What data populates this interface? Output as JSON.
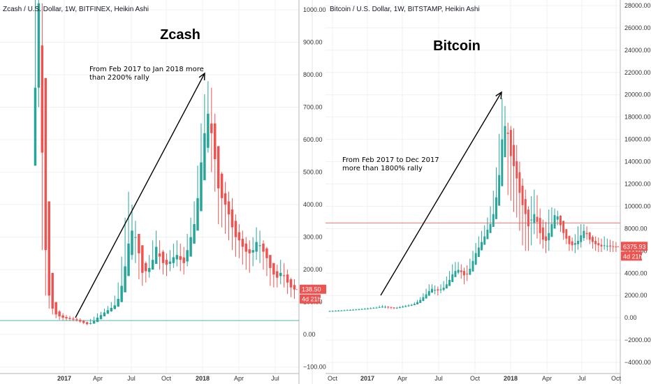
{
  "colors": {
    "up": "#26a69a",
    "down": "#ef5350",
    "grid": "#eef0f3",
    "axis": "#b2b5be"
  },
  "chart_data": [
    {
      "type": "candlestick",
      "title": "Zcash / U.S. Dollar, 1W, BITFINEX, Heikin Ashi",
      "heading": "Zcash",
      "annotation": [
        "From Feb 2017 to Jan 2018 more",
        "than 2200% rally"
      ],
      "ylim": [
        -120,
        1030
      ],
      "yticks": [
        1000,
        900,
        800,
        700,
        600,
        500,
        400,
        300,
        200,
        100,
        0,
        -100
      ],
      "ytick_labels": [
        "1000.00",
        "900.00",
        "800.00",
        "700.00",
        "600.00",
        "500.00",
        "400.00",
        "300.00",
        "200.00",
        "100.00",
        "0.00",
        "−100.00"
      ],
      "xticks": [
        {
          "label": "2017",
          "bold": true
        },
        {
          "label": "Apr",
          "bold": false
        },
        {
          "label": "Jul",
          "bold": false
        },
        {
          "label": "Oct",
          "bold": false
        },
        {
          "label": "2018",
          "bold": true
        },
        {
          "label": "Apr",
          "bold": false
        },
        {
          "label": "Jul",
          "bold": false
        }
      ],
      "last_price": "138.50",
      "last_price_value": 138.5,
      "countdown": "4d 21h",
      "hline": 43,
      "close": [
        760,
        1020,
        560,
        260,
        120,
        80,
        62,
        56,
        52,
        50,
        48,
        46,
        44,
        40,
        36,
        32,
        35,
        42,
        52,
        60,
        68,
        75,
        82,
        90,
        110,
        150,
        210,
        280,
        320,
        300,
        250,
        190,
        195,
        205,
        230,
        270,
        240,
        220,
        215,
        225,
        238,
        245,
        230,
        220,
        260,
        300,
        340,
        420,
        530,
        620,
        680,
        620,
        540,
        450,
        420,
        400,
        370,
        330,
        300,
        290,
        270,
        255,
        250,
        260,
        285,
        275,
        255,
        235,
        205,
        185,
        175,
        190,
        180,
        160,
        145,
        138.5
      ],
      "high": [
        1030,
        1030,
        1020,
        560,
        260,
        140,
        100,
        75,
        66,
        60,
        57,
        55,
        52,
        50,
        45,
        40,
        48,
        55,
        65,
        70,
        80,
        88,
        100,
        120,
        160,
        240,
        360,
        440,
        400,
        350,
        300,
        240,
        225,
        245,
        290,
        320,
        290,
        260,
        250,
        260,
        280,
        290,
        280,
        270,
        310,
        360,
        410,
        520,
        650,
        740,
        780,
        760,
        680,
        560,
        500,
        470,
        440,
        420,
        370,
        340,
        320,
        300,
        290,
        300,
        330,
        320,
        290,
        270,
        240,
        220,
        215,
        230,
        220,
        200,
        175,
        170
      ],
      "low": [
        520,
        700,
        260,
        120,
        80,
        62,
        50,
        45,
        44,
        43,
        42,
        41,
        40,
        36,
        32,
        29,
        31,
        36,
        44,
        50,
        58,
        64,
        70,
        78,
        85,
        100,
        140,
        200,
        230,
        220,
        170,
        150,
        160,
        175,
        200,
        220,
        200,
        185,
        180,
        195,
        205,
        210,
        195,
        185,
        210,
        245,
        290,
        350,
        430,
        520,
        560,
        500,
        440,
        340,
        330,
        310,
        290,
        260,
        240,
        235,
        215,
        200,
        190,
        210,
        230,
        220,
        200,
        180,
        150,
        145,
        145,
        155,
        145,
        125,
        115,
        110
      ]
    },
    {
      "type": "candlestick",
      "title": "Bitcoin / U.S. Dollar, 1W, BITSTAMP, Heikin Ashi",
      "heading": "Bitcoin",
      "annotation": [
        "From Feb 2017 to Dec 2017",
        "more than 1800% rally"
      ],
      "ylim": [
        -5000,
        28500
      ],
      "yticks": [
        28000,
        26000,
        24000,
        22000,
        20000,
        18000,
        16000,
        14000,
        12000,
        10000,
        8000,
        6000,
        4000,
        2000,
        0,
        -2000,
        -4000
      ],
      "ytick_labels": [
        "28000.00",
        "26000.00",
        "24000.00",
        "22000.00",
        "20000.00",
        "18000.00",
        "16000.00",
        "14000.00",
        "12000.00",
        "10000.00",
        "8000.00",
        "6000.00",
        "4000.00",
        "2000.00",
        "0.00",
        "−2000.00",
        "−4000.00"
      ],
      "xticks": [
        {
          "label": "Oct",
          "bold": false
        },
        {
          "label": "2017",
          "bold": true
        },
        {
          "label": "Apr",
          "bold": false
        },
        {
          "label": "Jul",
          "bold": false
        },
        {
          "label": "Oct",
          "bold": false
        },
        {
          "label": "2018",
          "bold": true
        },
        {
          "label": "Apr",
          "bold": false
        },
        {
          "label": "Jul",
          "bold": false
        },
        {
          "label": "Oct",
          "bold": false
        }
      ],
      "last_price": "6375.93",
      "last_price_value": 6375.93,
      "countdown": "4d 21h",
      "hline": 8500,
      "close": [
        600,
        610,
        620,
        640,
        650,
        670,
        690,
        700,
        720,
        740,
        750,
        780,
        800,
        820,
        850,
        880,
        900,
        950,
        1000,
        980,
        950,
        900,
        880,
        900,
        950,
        1000,
        1050,
        1100,
        1150,
        1250,
        1400,
        1600,
        1850,
        2100,
        2400,
        2600,
        2500,
        2450,
        2550,
        2700,
        3000,
        3400,
        3900,
        4200,
        4300,
        4100,
        3800,
        3900,
        4400,
        5100,
        5800,
        6300,
        6800,
        7300,
        7900,
        8400,
        9300,
        10800,
        12800,
        16000,
        17200,
        16500,
        14500,
        13600,
        12500,
        11200,
        10100,
        9300,
        8200,
        8800,
        9300,
        8600,
        7600,
        7000,
        6900,
        7600,
        8400,
        9200,
        9100,
        8300,
        7600,
        7100,
        6600,
        6500,
        6700,
        6900,
        7400,
        7800,
        7500,
        7000,
        6800,
        6600,
        6500,
        6400,
        6500,
        6450,
        6400,
        6380,
        6376
      ],
      "high": [
        650,
        660,
        670,
        690,
        700,
        720,
        740,
        760,
        780,
        800,
        820,
        850,
        870,
        900,
        930,
        960,
        1000,
        1100,
        1150,
        1100,
        1050,
        980,
        950,
        980,
        1050,
        1100,
        1150,
        1200,
        1250,
        1400,
        1600,
        1850,
        2200,
        2600,
        3000,
        3000,
        2900,
        2800,
        3000,
        3300,
        3700,
        4200,
        4800,
        5000,
        5000,
        4800,
        4500,
        4700,
        5300,
        6000,
        6700,
        7300,
        7800,
        8300,
        9000,
        10000,
        11400,
        13500,
        16500,
        19700,
        19000,
        17500,
        17200,
        17000,
        15500,
        14000,
        12500,
        11500,
        10000,
        10900,
        11500,
        11000,
        9800,
        8800,
        8600,
        9700,
        9900,
        9800,
        9600,
        9200,
        8500,
        7800,
        7300,
        7200,
        7500,
        8200,
        8400,
        8400,
        8200,
        7700,
        7400,
        7300,
        7200,
        7100,
        7300,
        7100,
        7000,
        6900,
        6800
      ],
      "low": [
        550,
        560,
        570,
        590,
        600,
        620,
        640,
        660,
        680,
        700,
        720,
        740,
        760,
        780,
        800,
        830,
        860,
        880,
        900,
        850,
        800,
        780,
        770,
        800,
        850,
        900,
        950,
        1000,
        1050,
        1150,
        1300,
        1450,
        1700,
        1900,
        2200,
        2300,
        2100,
        2000,
        2200,
        2400,
        2700,
        3100,
        3500,
        3800,
        3900,
        3500,
        3000,
        3300,
        3900,
        4600,
        5300,
        5700,
        6200,
        6700,
        7300,
        7800,
        8500,
        9800,
        11500,
        13500,
        15000,
        11000,
        10500,
        9500,
        9000,
        7800,
        6500,
        6000,
        6000,
        6500,
        7500,
        7100,
        6600,
        6200,
        5800,
        6000,
        7600,
        8400,
        8300,
        7700,
        7000,
        6600,
        6000,
        6000,
        5800,
        6100,
        6300,
        6900,
        7000,
        6600,
        6200,
        6000,
        5900,
        5900,
        6100,
        6000,
        5900,
        5900,
        5900
      ]
    }
  ]
}
